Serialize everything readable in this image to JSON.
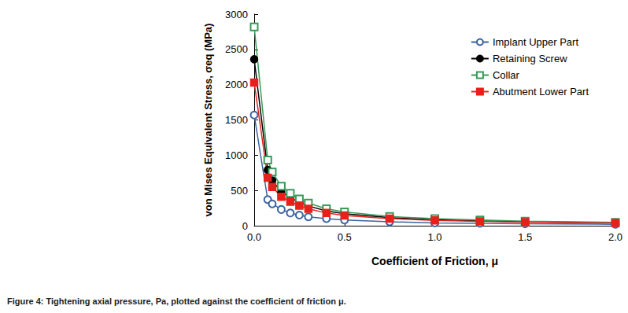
{
  "chart_data": {
    "type": "line",
    "caption": "Figure 4: Tightening axial pressure, Pa, plotted against the coefficient of friction μ.",
    "x_label": "Coefficient of Friction, μ",
    "y_label": "von Mises Equivalent Stress, σeq (MPa)",
    "x": [
      0,
      0.075,
      0.1,
      0.15,
      0.2,
      0.25,
      0.3,
      0.4,
      0.5,
      0.75,
      1.0,
      1.25,
      1.5,
      2.0
    ],
    "series": [
      {
        "name": "Implant Upper Part",
        "color": "#3c64a0",
        "marker": "circle-open",
        "values": [
          1570,
          370,
          310,
          230,
          180,
          150,
          125,
          100,
          80,
          55,
          40,
          33,
          27,
          20
        ]
      },
      {
        "name": "Retaining Screw",
        "color": "#000000",
        "marker": "circle",
        "values": [
          2360,
          790,
          640,
          480,
          400,
          330,
          280,
          210,
          170,
          115,
          85,
          70,
          57,
          43
        ]
      },
      {
        "name": "Collar",
        "color": "#3a9a5a",
        "marker": "square-open",
        "values": [
          2820,
          930,
          760,
          560,
          460,
          380,
          320,
          240,
          195,
          130,
          100,
          80,
          65,
          48
        ]
      },
      {
        "name": "Abutment Lower Part",
        "color": "#e8201c",
        "marker": "square",
        "values": [
          2030,
          680,
          550,
          410,
          340,
          285,
          240,
          180,
          145,
          100,
          75,
          60,
          50,
          38
        ]
      }
    ],
    "xlim": [
      0,
      2
    ],
    "xticks": [
      {
        "value": 0,
        "label": "0.0"
      },
      {
        "value": 0.5,
        "label": "0.5"
      },
      {
        "value": 1,
        "label": "1.0"
      },
      {
        "value": 1.5,
        "label": "1.5"
      },
      {
        "value": 2,
        "label": "2.0"
      }
    ],
    "ylim": [
      0,
      3000
    ],
    "yticks": [
      0,
      500,
      1000,
      1500,
      2000,
      2500,
      3000
    ],
    "grid": false,
    "legend": "upper right"
  }
}
